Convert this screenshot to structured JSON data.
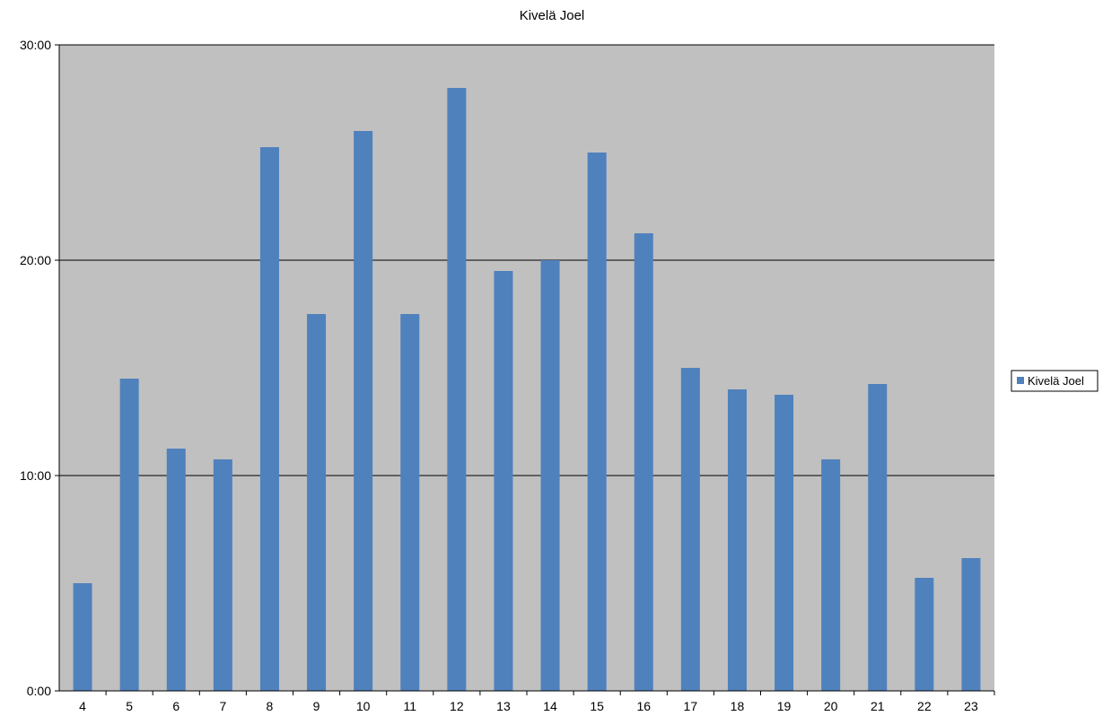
{
  "chart_data": {
    "type": "bar",
    "title": "Kivelä Joel",
    "categories": [
      "4",
      "5",
      "6",
      "7",
      "8",
      "9",
      "10",
      "11",
      "12",
      "13",
      "14",
      "15",
      "16",
      "17",
      "18",
      "19",
      "20",
      "21",
      "22",
      "23"
    ],
    "series": [
      {
        "name": "Kivelä Joel",
        "values_minutes": [
          5.0,
          14.5,
          11.25,
          10.75,
          25.25,
          17.5,
          26.0,
          17.5,
          28.0,
          19.5,
          20.0,
          25.0,
          21.25,
          15.0,
          14.0,
          13.75,
          10.75,
          14.25,
          5.25,
          6.167
        ]
      }
    ],
    "y_ticks": [
      "0:00",
      "10:00",
      "20:00",
      "30:00"
    ],
    "ylim_minutes": [
      0,
      30
    ],
    "y_unit": "mm:ss",
    "grid": true,
    "legend_position": "right",
    "colors": {
      "bar": "#4F81BD",
      "plot_background": "#C0C0C0",
      "gridline": "#000000"
    }
  }
}
